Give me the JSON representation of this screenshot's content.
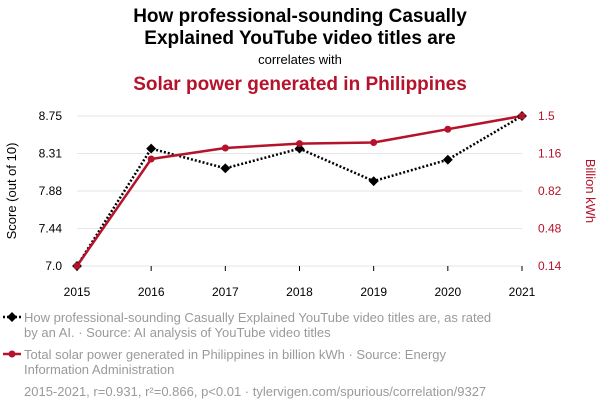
{
  "chart_data": {
    "type": "line",
    "title": "How professional-sounding Casually Explained YouTube video titles are",
    "title_lines": [
      "How professional-sounding Casually",
      "Explained YouTube video titles are"
    ],
    "connector": "correlates with",
    "title2": "Solar power generated in Philippines",
    "x": [
      2015,
      2016,
      2017,
      2018,
      2019,
      2020,
      2021
    ],
    "y_left": {
      "label": "Score (out of 10)",
      "ticks": [
        "7.0",
        "7.44",
        "7.88",
        "8.31",
        "8.75"
      ],
      "lim": [
        7.0,
        8.75
      ]
    },
    "y_right": {
      "label": "Billion kWh",
      "ticks": [
        "0.14",
        "0.48",
        "0.82",
        "1.16",
        "1.5"
      ],
      "lim": [
        0.14,
        1.5
      ]
    },
    "series": [
      {
        "name": "How professional-sounding Casually Explained YouTube video titles are, as rated by an AI. · Source: AI analysis of YouTube video titles",
        "legend_lines": [
          "How professional-sounding Casually Explained YouTube video titles are, as rated",
          "by an AI. · Source: AI analysis of YouTube video titles"
        ],
        "axis": "left",
        "color": "#000000",
        "style": "dotted",
        "marker": "diamond",
        "values": [
          7.0,
          8.37,
          8.14,
          8.37,
          7.99,
          8.24,
          8.75
        ]
      },
      {
        "name": "Total solar power generated in Philippines in billion kWh · Source: Energy Information Administration",
        "legend_lines": [
          "Total solar power generated in Philippines in billion kWh · Source: Energy",
          "Information Administration"
        ],
        "axis": "right",
        "color": "#b5122b",
        "style": "solid",
        "marker": "circle",
        "values": [
          0.14,
          1.11,
          1.21,
          1.25,
          1.26,
          1.38,
          1.5
        ]
      }
    ],
    "footer": "2015-2021, r=0.931, r²=0.866, p<0.01 · tylervigen.com/spurious/correlation/9327"
  }
}
